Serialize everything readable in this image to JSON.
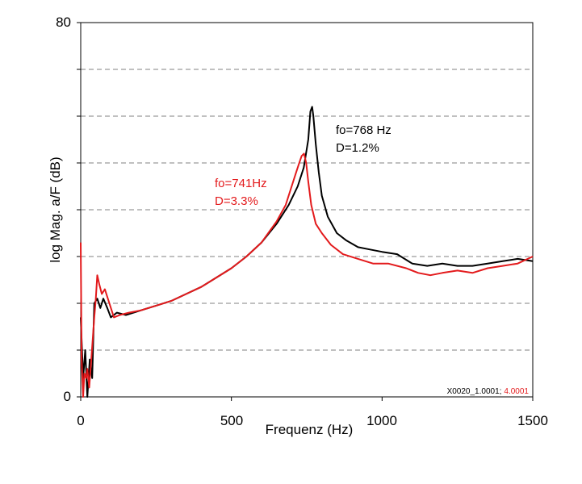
{
  "chart_data": {
    "type": "line",
    "xlabel": "Frequenz (Hz)",
    "ylabel": "log Mag. a/F (dB)",
    "xlim": [
      0,
      1500
    ],
    "ylim": [
      0,
      80
    ],
    "x_ticks": [
      "0",
      "500",
      "1000",
      "1500"
    ],
    "y_ticks": [
      "0",
      "80"
    ],
    "y_gridlines": [
      10,
      20,
      30,
      40,
      50,
      60,
      70
    ],
    "grid": "horizontal dashed",
    "series": [
      {
        "color": "#000000",
        "points": [
          [
            0,
            17
          ],
          [
            8,
            4
          ],
          [
            15,
            10
          ],
          [
            22,
            0
          ],
          [
            30,
            8
          ],
          [
            38,
            4
          ],
          [
            45,
            20
          ],
          [
            55,
            21
          ],
          [
            65,
            19
          ],
          [
            75,
            21
          ],
          [
            88,
            19
          ],
          [
            100,
            17
          ],
          [
            120,
            18
          ],
          [
            150,
            17.5
          ],
          [
            200,
            18.5
          ],
          [
            250,
            19.5
          ],
          [
            300,
            20.5
          ],
          [
            350,
            22
          ],
          [
            400,
            23.5
          ],
          [
            450,
            25.5
          ],
          [
            500,
            27.5
          ],
          [
            550,
            30
          ],
          [
            600,
            33
          ],
          [
            650,
            37
          ],
          [
            690,
            41
          ],
          [
            720,
            45
          ],
          [
            740,
            49
          ],
          [
            755,
            55
          ],
          [
            762,
            61
          ],
          [
            768,
            62
          ],
          [
            772,
            60
          ],
          [
            780,
            54
          ],
          [
            790,
            48
          ],
          [
            800,
            43
          ],
          [
            820,
            38.5
          ],
          [
            850,
            35
          ],
          [
            880,
            33.5
          ],
          [
            920,
            32
          ],
          [
            960,
            31.5
          ],
          [
            1000,
            31
          ],
          [
            1050,
            30.5
          ],
          [
            1100,
            28.5
          ],
          [
            1150,
            28
          ],
          [
            1200,
            28.5
          ],
          [
            1250,
            28
          ],
          [
            1300,
            28
          ],
          [
            1350,
            28.5
          ],
          [
            1400,
            29
          ],
          [
            1450,
            29.5
          ],
          [
            1500,
            29
          ]
        ]
      },
      {
        "color": "#e31a1c",
        "points": [
          [
            0,
            33
          ],
          [
            3,
            8
          ],
          [
            8,
            0
          ],
          [
            12,
            5
          ],
          [
            18,
            4
          ],
          [
            22,
            6
          ],
          [
            28,
            2
          ],
          [
            35,
            8
          ],
          [
            45,
            17
          ],
          [
            50,
            21
          ],
          [
            55,
            26
          ],
          [
            62,
            24
          ],
          [
            70,
            22
          ],
          [
            80,
            23
          ],
          [
            95,
            20
          ],
          [
            110,
            17
          ],
          [
            130,
            17.5
          ],
          [
            160,
            18
          ],
          [
            200,
            18.5
          ],
          [
            250,
            19.5
          ],
          [
            300,
            20.5
          ],
          [
            350,
            22
          ],
          [
            400,
            23.5
          ],
          [
            450,
            25.5
          ],
          [
            500,
            27.5
          ],
          [
            550,
            30
          ],
          [
            600,
            33
          ],
          [
            650,
            37.5
          ],
          [
            680,
            41
          ],
          [
            700,
            45
          ],
          [
            715,
            48
          ],
          [
            725,
            50
          ],
          [
            733,
            51.5
          ],
          [
            741,
            52
          ],
          [
            748,
            50
          ],
          [
            755,
            46
          ],
          [
            765,
            41
          ],
          [
            780,
            37
          ],
          [
            800,
            35
          ],
          [
            830,
            32.5
          ],
          [
            870,
            30.5
          ],
          [
            920,
            29.5
          ],
          [
            970,
            28.5
          ],
          [
            1020,
            28.5
          ],
          [
            1080,
            27.5
          ],
          [
            1120,
            26.5
          ],
          [
            1160,
            26
          ],
          [
            1200,
            26.5
          ],
          [
            1250,
            27
          ],
          [
            1300,
            26.5
          ],
          [
            1350,
            27.5
          ],
          [
            1400,
            28
          ],
          [
            1450,
            28.5
          ],
          [
            1500,
            30
          ]
        ]
      }
    ],
    "annotations": [
      {
        "text1": "fo=768 Hz",
        "text2": "D=1.2%",
        "color": "#000000"
      },
      {
        "text1": "fo=741Hz",
        "text2": "D=3.3%",
        "color": "#e31a1c"
      }
    ],
    "footnote": {
      "black": "X0020_1.0001;",
      "red": "4.0001"
    }
  }
}
